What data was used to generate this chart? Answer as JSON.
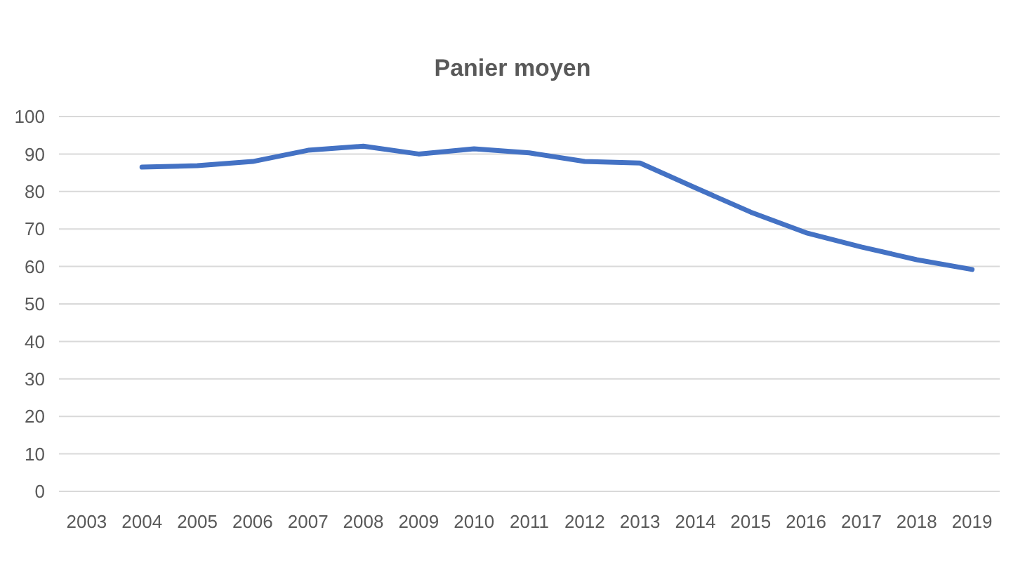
{
  "chart_data": {
    "type": "line",
    "title": "Panier moyen",
    "categories": [
      "2003",
      "2004",
      "2005",
      "2006",
      "2007",
      "2008",
      "2009",
      "2010",
      "2011",
      "2012",
      "2013",
      "2014",
      "2015",
      "2016",
      "2017",
      "2018",
      "2019"
    ],
    "series": [
      {
        "color": "#4472c4",
        "values": [
          null,
          86.5,
          86.9,
          88,
          91,
          92.1,
          90,
          91.4,
          90.3,
          88,
          87.6,
          81,
          74.5,
          69,
          65.2,
          61.8,
          59.2
        ]
      }
    ],
    "ylim": [
      0,
      100
    ],
    "yticks": [
      0,
      10,
      20,
      30,
      40,
      50,
      60,
      70,
      80,
      90,
      100
    ],
    "grid": "y",
    "marker": "none",
    "line_style": "solid"
  }
}
